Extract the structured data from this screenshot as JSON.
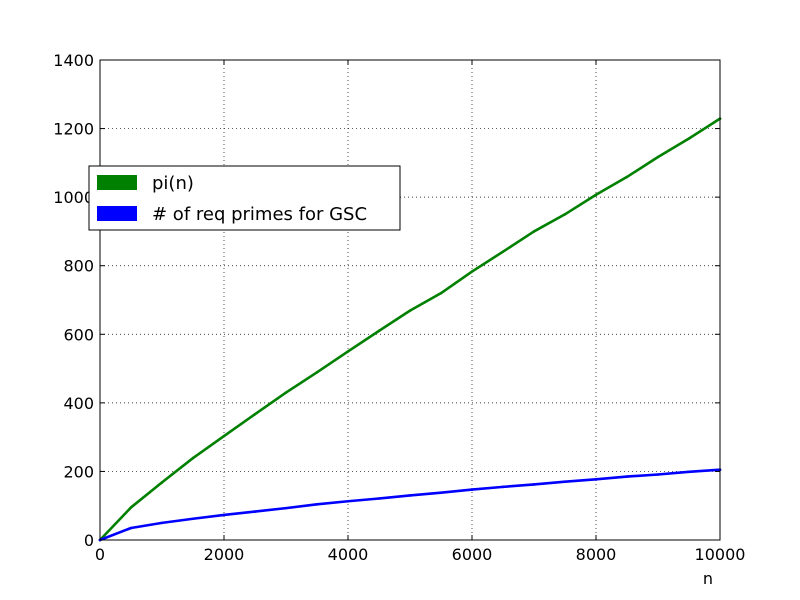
{
  "chart_data": {
    "type": "line",
    "title": "",
    "xlabel": "n",
    "ylabel": "",
    "xlim": [
      0,
      10000
    ],
    "ylim": [
      0,
      1400
    ],
    "xticks": [
      0,
      2000,
      4000,
      6000,
      8000,
      10000
    ],
    "yticks": [
      0,
      200,
      400,
      600,
      800,
      1000,
      1200,
      1400
    ],
    "xtick_labels": [
      "0",
      "2000",
      "4000",
      "6000",
      "8000",
      "10000"
    ],
    "ytick_labels": [
      "0",
      "200",
      "400",
      "600",
      "800",
      "1000",
      "1200",
      "1400"
    ],
    "grid": true,
    "legend_position": "upper-left",
    "series": [
      {
        "name": "pi(n)",
        "color": "#008000",
        "x": [
          0,
          500,
          1000,
          1500,
          2000,
          2500,
          3000,
          3500,
          4000,
          4500,
          5000,
          5500,
          6000,
          6500,
          7000,
          7500,
          8000,
          8500,
          9000,
          9500,
          10000
        ],
        "y": [
          0,
          95,
          168,
          239,
          303,
          367,
          430,
          489,
          550,
          610,
          669,
          720,
          783,
          841,
          900,
          950,
          1007,
          1059,
          1117,
          1171,
          1229
        ]
      },
      {
        "name": "# of req primes for GSC",
        "color": "#0000ff",
        "x": [
          0,
          500,
          1000,
          1500,
          2000,
          2500,
          3000,
          3500,
          4000,
          4500,
          5000,
          5500,
          6000,
          6500,
          7000,
          7500,
          8000,
          8500,
          9000,
          9500,
          10000
        ],
        "y": [
          0,
          35,
          50,
          62,
          73,
          83,
          93,
          104,
          113,
          121,
          130,
          138,
          147,
          155,
          162,
          170,
          177,
          185,
          191,
          199,
          205
        ]
      }
    ]
  }
}
